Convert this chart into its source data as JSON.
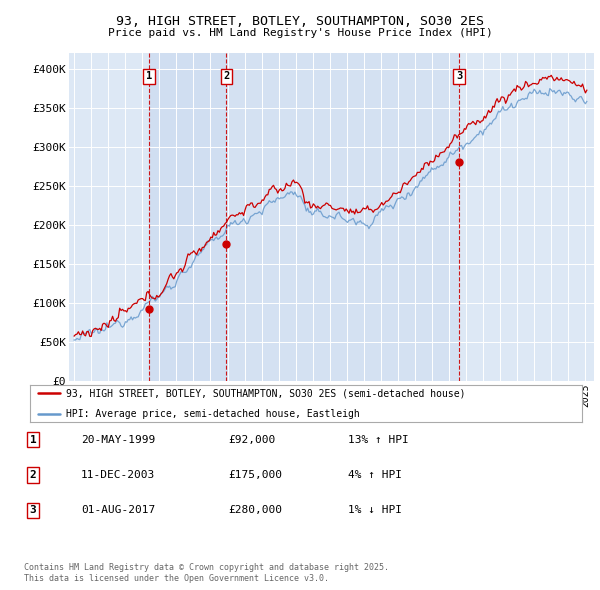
{
  "title_line1": "93, HIGH STREET, BOTLEY, SOUTHAMPTON, SO30 2ES",
  "title_line2": "Price paid vs. HM Land Registry's House Price Index (HPI)",
  "fig_bg_color": "#f8f8f8",
  "plot_bg_color": "#dde8f5",
  "shaded_region_color": "#ccdcf0",
  "grid_color": "#ffffff",
  "ylabel_ticks": [
    "£0",
    "£50K",
    "£100K",
    "£150K",
    "£200K",
    "£250K",
    "£300K",
    "£350K",
    "£400K"
  ],
  "ytick_values": [
    0,
    50000,
    100000,
    150000,
    200000,
    250000,
    300000,
    350000,
    400000
  ],
  "ylim": [
    0,
    420000
  ],
  "xlim_start": 1994.7,
  "xlim_end": 2025.5,
  "sale_dates": [
    1999.38,
    2003.94,
    2017.58
  ],
  "sale_prices": [
    92000,
    175000,
    280000
  ],
  "sale_labels": [
    "1",
    "2",
    "3"
  ],
  "vline_color": "#cc0000",
  "marker_color": "#cc0000",
  "legend_entries": [
    "93, HIGH STREET, BOTLEY, SOUTHAMPTON, SO30 2ES (semi-detached house)",
    "HPI: Average price, semi-detached house, Eastleigh"
  ],
  "legend_line_colors": [
    "#cc0000",
    "#6699cc"
  ],
  "table_data": [
    [
      "1",
      "20-MAY-1999",
      "£92,000",
      "13% ↑ HPI"
    ],
    [
      "2",
      "11-DEC-2003",
      "£175,000",
      "4% ↑ HPI"
    ],
    [
      "3",
      "01-AUG-2017",
      "£280,000",
      "1% ↓ HPI"
    ]
  ],
  "footnote": "Contains HM Land Registry data © Crown copyright and database right 2025.\nThis data is licensed under the Open Government Licence v3.0.",
  "hpi_line_color": "#6699cc",
  "price_line_color": "#cc0000"
}
